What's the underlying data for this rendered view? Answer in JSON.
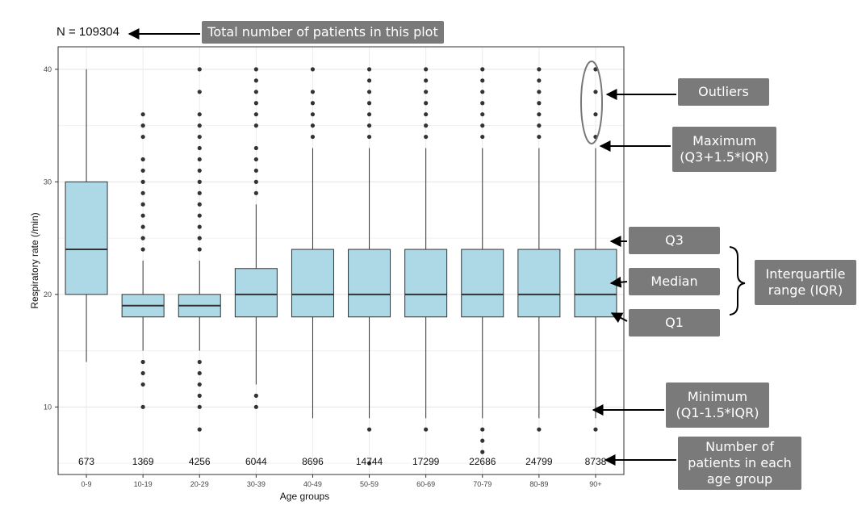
{
  "total_label": "N = 109304",
  "callouts": {
    "total": "Total number of patients in this plot",
    "outliers": "Outliers",
    "maximum_1": "Maximum",
    "maximum_2": "(Q3+1.5*IQR)",
    "q3": "Q3",
    "median": "Median",
    "q1": "Q1",
    "iqr_1": "Interquartile",
    "iqr_2": "range (IQR)",
    "minimum_1": "Minimum",
    "minimum_2": "(Q1-1.5*IQR)",
    "count_1": "Number of",
    "count_2": "patients in each",
    "count_3": "age group"
  },
  "colors": {
    "box_fill": "#add8e6",
    "callout_bg": "#7a7a7a"
  },
  "chart_data": {
    "type": "box",
    "xlabel": "Age groups",
    "ylabel": "Respiratory rate (/min)",
    "ylim": [
      4,
      42
    ],
    "yticks": [
      10,
      20,
      30,
      40
    ],
    "grid": true,
    "categories": [
      "0-9",
      "10-19",
      "20-29",
      "30-39",
      "40-49",
      "50-59",
      "60-69",
      "70-79",
      "80-89",
      "90+"
    ],
    "counts": [
      "673",
      "1369",
      "4256",
      "6044",
      "8696",
      "14744",
      "17299",
      "22686",
      "24799",
      "8738"
    ],
    "boxes": [
      {
        "min": 14,
        "q1": 20,
        "median": 24,
        "q3": 30,
        "max": 40,
        "outliers": []
      },
      {
        "min": 15,
        "q1": 18,
        "median": 19,
        "q3": 20,
        "max": 23,
        "outliers": [
          10,
          12,
          13,
          14,
          24,
          25,
          26,
          27,
          28,
          29,
          30,
          31,
          32,
          34,
          35,
          36
        ]
      },
      {
        "min": 15,
        "q1": 18,
        "median": 19,
        "q3": 20,
        "max": 23,
        "outliers": [
          8,
          10,
          11,
          12,
          13,
          14,
          24,
          25,
          26,
          27,
          28,
          29,
          30,
          31,
          32,
          33,
          34,
          35,
          36,
          38,
          40
        ]
      },
      {
        "min": 12,
        "q1": 18,
        "median": 20,
        "q3": 22.3,
        "max": 28,
        "outliers": [
          10,
          11,
          29,
          30,
          31,
          32,
          33,
          35,
          36,
          37,
          38,
          39,
          40
        ]
      },
      {
        "min": 9,
        "q1": 18,
        "median": 20,
        "q3": 24,
        "max": 33,
        "outliers": [
          34,
          35,
          36,
          37,
          38,
          40
        ]
      },
      {
        "min": 9,
        "q1": 18,
        "median": 20,
        "q3": 24,
        "max": 33,
        "outliers": [
          5,
          8,
          34,
          35,
          36,
          37,
          38,
          39,
          40
        ]
      },
      {
        "min": 9,
        "q1": 18,
        "median": 20,
        "q3": 24,
        "max": 33,
        "outliers": [
          8,
          34,
          35,
          36,
          37,
          38,
          39,
          40
        ]
      },
      {
        "min": 9,
        "q1": 18,
        "median": 20,
        "q3": 24,
        "max": 33,
        "outliers": [
          6,
          7,
          8,
          34,
          35,
          36,
          37,
          38,
          39,
          40
        ]
      },
      {
        "min": 9,
        "q1": 18,
        "median": 20,
        "q3": 24,
        "max": 33,
        "outliers": [
          8,
          34,
          35,
          36,
          37,
          38,
          39,
          40
        ]
      },
      {
        "min": 9,
        "q1": 18,
        "median": 20,
        "q3": 24,
        "max": 33,
        "outliers": [
          8,
          34,
          36,
          38,
          40
        ]
      }
    ]
  }
}
